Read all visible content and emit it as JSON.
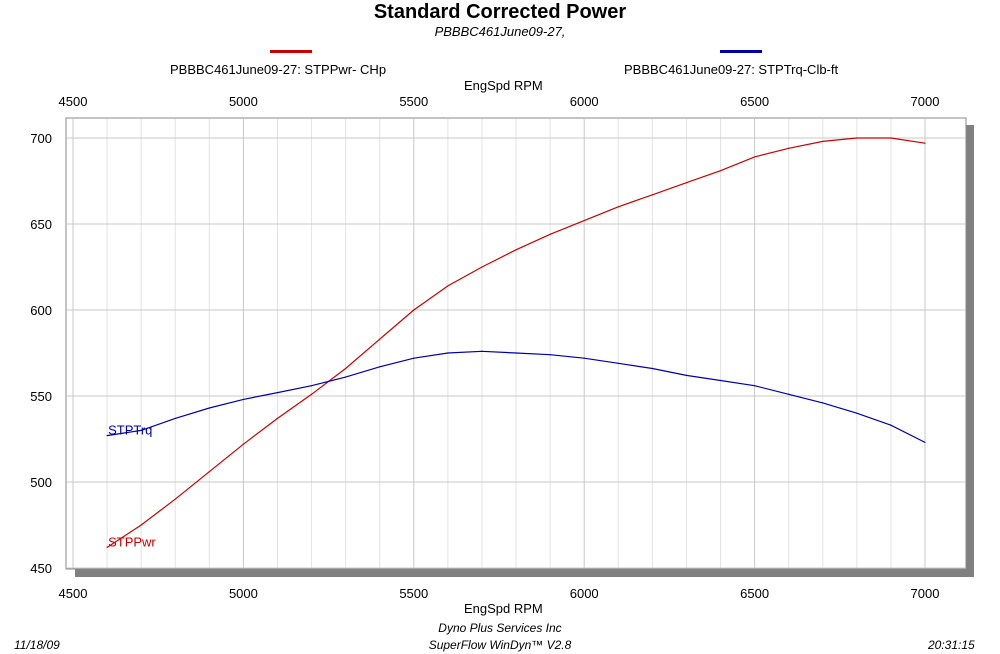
{
  "header": {
    "title": "Standard Corrected Power",
    "subtitle": "PBBBC461June09-27,"
  },
  "legend": [
    {
      "label": "PBBBC461June09-27: STPPwr- CHp",
      "color": "#cc0000"
    },
    {
      "label": "PBBBC461June09-27: STPTrq-Clb-ft",
      "color": "#0000aa"
    }
  ],
  "footer": {
    "date": "11/18/09",
    "company": "Dyno Plus Services Inc",
    "software": "SuperFlow WinDyn™ V2.8",
    "time": "20:31:15"
  },
  "chart_data": {
    "type": "line",
    "title": "Standard Corrected Power",
    "xlabel": "EngSpd  RPM",
    "ylabel": "",
    "xlim": [
      4500,
      7000
    ],
    "ylim": [
      450,
      700
    ],
    "x_ticks": [
      "4500",
      "5000",
      "5500",
      "6000",
      "6500",
      "7000"
    ],
    "y_ticks": [
      "450",
      "500",
      "550",
      "600",
      "650",
      "700"
    ],
    "grid": true,
    "legend_position": "top",
    "series": [
      {
        "name": "PBBBC461June09-27: STPPwr- CHp",
        "end_label": "STPPwr",
        "color": "#cc0000",
        "x": [
          4600,
          4700,
          4800,
          4900,
          5000,
          5100,
          5200,
          5300,
          5400,
          5500,
          5600,
          5700,
          5800,
          5900,
          6000,
          6100,
          6200,
          6300,
          6400,
          6500,
          6600,
          6700,
          6800,
          6900,
          7000
        ],
        "values": [
          462,
          475,
          490,
          506,
          522,
          537,
          551,
          566,
          583,
          600,
          614,
          625,
          635,
          644,
          652,
          660,
          667,
          674,
          681,
          689,
          694,
          698,
          700,
          700,
          697
        ]
      },
      {
        "name": "PBBBC461June09-27: STPTrq-Clb-ft",
        "end_label": "STPTrq",
        "color": "#0000aa",
        "x": [
          4600,
          4700,
          4800,
          4900,
          5000,
          5100,
          5200,
          5300,
          5400,
          5500,
          5600,
          5700,
          5800,
          5900,
          6000,
          6100,
          6200,
          6300,
          6400,
          6500,
          6600,
          6700,
          6800,
          6900,
          7000
        ],
        "values": [
          527,
          530,
          537,
          543,
          548,
          552,
          556,
          561,
          567,
          572,
          575,
          576,
          575,
          574,
          572,
          569,
          566,
          562,
          559,
          556,
          551,
          546,
          540,
          533,
          523
        ]
      }
    ]
  }
}
